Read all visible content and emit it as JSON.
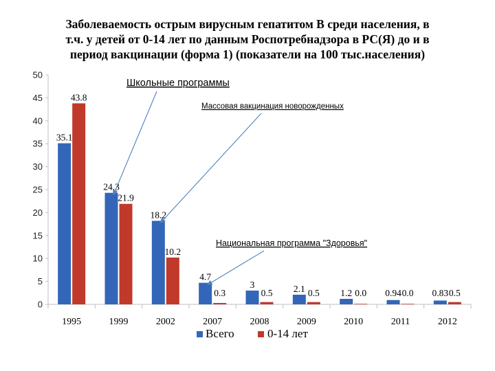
{
  "title_lines": [
    "Заболеваемость острым вирусным гепатитом В среди населения, в",
    "т.ч. у детей от 0-14 лет по данным Роспотребнадзора в РС(Я) до и в",
    "период вакцинации  (форма 1) (показатели на 100 тыс.населения)"
  ],
  "colors": {
    "total": "#3366b8",
    "children": "#c0392b",
    "arrow": "#4f81bd",
    "axis": "#bfbfbf"
  },
  "chart_data": {
    "type": "bar",
    "title": "Заболеваемость острым вирусным гепатитом В среди населения, в т.ч. у детей от 0-14 лет по данным Роспотребнадзора в РС(Я) до и в период вакцинации  (форма 1) (показатели на 100 тыс.населения)",
    "xlabel": "",
    "ylabel": "",
    "ylim": [
      0,
      50
    ],
    "yticks": [
      0,
      5,
      10,
      15,
      20,
      25,
      30,
      35,
      40,
      45,
      50
    ],
    "grid": false,
    "legend_position": "bottom",
    "categories": [
      "1995",
      "1999",
      "2002",
      "2007",
      "2008",
      "2009",
      "2010",
      "2011",
      "2012"
    ],
    "series": [
      {
        "name": "Всего",
        "values": [
          35.1,
          24.3,
          18.2,
          4.7,
          3,
          2.1,
          1.2,
          0.94,
          0.83
        ],
        "labels": [
          "35.1",
          "24.3",
          "18.2",
          "4.7",
          "3",
          "2.1",
          "1.2",
          "0.94",
          "0.83"
        ]
      },
      {
        "name": "0-14 лет",
        "values": [
          43.8,
          21.9,
          10.2,
          0.3,
          0.5,
          0.5,
          0.0,
          0.0,
          0.5
        ],
        "labels": [
          "43.8",
          "21.9",
          "10.2",
          "0.3",
          "0.5",
          "0.5",
          "0.0",
          "0.0",
          "0.5"
        ]
      }
    ],
    "annotations": [
      {
        "text": "Школьные программы",
        "points_to": {
          "category": "1999",
          "value": 24.3
        }
      },
      {
        "text": "Массовая вакцинация новорожденных",
        "points_to": {
          "category": "2002",
          "value": 18.2
        }
      },
      {
        "text": "Национальная программа \"Здоровья\"",
        "points_to": {
          "category": "2007",
          "value": 4.7
        }
      }
    ]
  }
}
